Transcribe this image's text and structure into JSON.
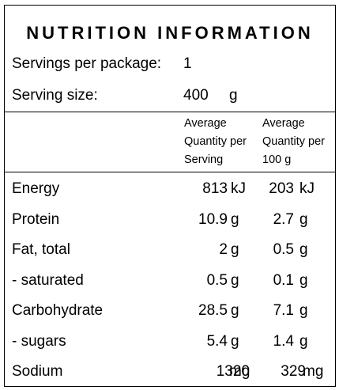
{
  "title": "NUTRITION INFORMATION",
  "servings": {
    "label": "Servings per package:",
    "value": "1"
  },
  "serving_size": {
    "label": "Serving size:",
    "value": "400",
    "unit": "g"
  },
  "columns": {
    "per_serving": [
      "Average",
      "Quantity per",
      "Serving"
    ],
    "per_100g": [
      "Average",
      "Quantity per",
      "100 g"
    ]
  },
  "rows": [
    {
      "name": "Energy",
      "serving_value": "813",
      "serving_unit": "kJ",
      "per100_value": "203",
      "per100_unit": "kJ"
    },
    {
      "name": "Protein",
      "serving_value": "10.9",
      "serving_unit": "g",
      "per100_value": "2.7",
      "per100_unit": "g"
    },
    {
      "name": "Fat, total",
      "serving_value": "2",
      "serving_unit": "g",
      "per100_value": "0.5",
      "per100_unit": "g"
    },
    {
      "name": "- saturated",
      "serving_value": "0.5",
      "serving_unit": "g",
      "per100_value": "0.1",
      "per100_unit": "g"
    },
    {
      "name": "Carbohydrate",
      "serving_value": "28.5",
      "serving_unit": "g",
      "per100_value": "7.1",
      "per100_unit": "g"
    },
    {
      "name": "- sugars",
      "serving_value": "5.4",
      "serving_unit": "g",
      "per100_value": "1.4",
      "per100_unit": "g"
    },
    {
      "name": "Sodium",
      "serving_value": "1320",
      "serving_unit": "mg",
      "per100_value": "329",
      "per100_unit": "mg"
    }
  ]
}
